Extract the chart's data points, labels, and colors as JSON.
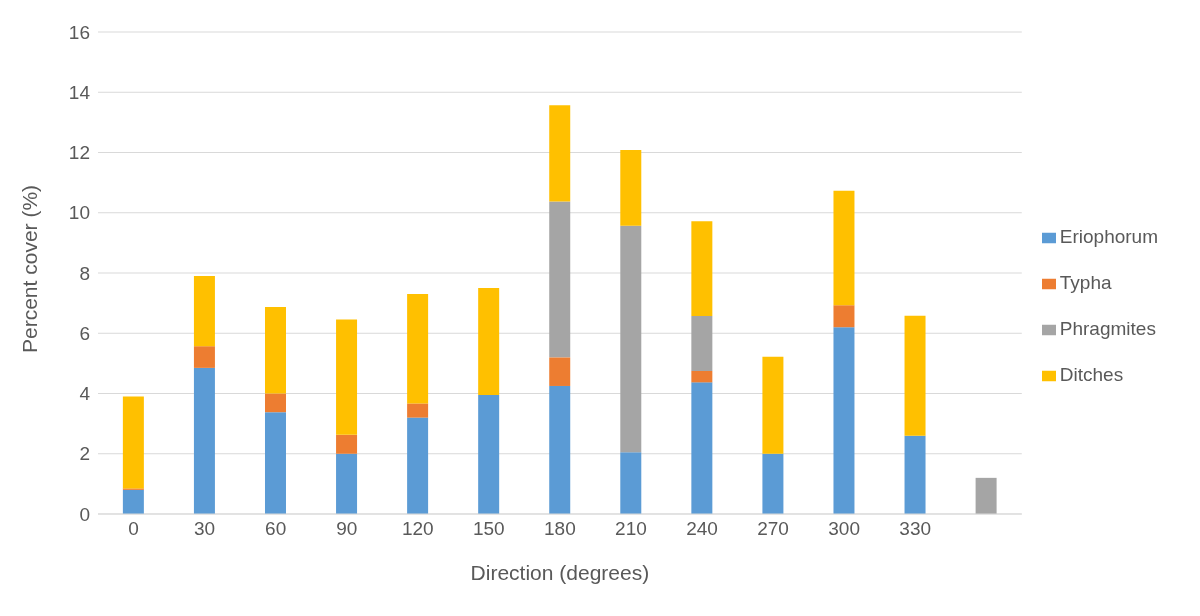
{
  "chart_data": {
    "type": "bar",
    "stacked": true,
    "xlabel": "Direction (degrees)",
    "ylabel": "Percent cover (%)",
    "categories": [
      "0",
      "30",
      "60",
      "90",
      "120",
      "150",
      "180",
      "210",
      "240",
      "270",
      "300",
      "330",
      null
    ],
    "series": [
      {
        "name": "Eriophorum",
        "color": "#5b9bd5",
        "values": [
          0.8,
          4.85,
          3.38,
          2.0,
          3.2,
          3.95,
          4.25,
          2.05,
          4.37,
          2.0,
          6.2,
          2.6,
          null
        ]
      },
      {
        "name": "Typha",
        "color": "#ed7d31",
        "values": [
          0.05,
          0.72,
          0.62,
          0.63,
          0.47,
          null,
          0.95,
          null,
          0.38,
          null,
          0.73,
          null,
          null
        ]
      },
      {
        "name": "Phragmites",
        "color": "#a5a5a5",
        "values": [
          null,
          null,
          null,
          null,
          null,
          null,
          5.17,
          7.52,
          1.82,
          null,
          null,
          null,
          1.2
        ]
      },
      {
        "name": "Ditches",
        "color": "#ffc000",
        "values": [
          3.05,
          2.33,
          2.87,
          3.83,
          3.63,
          3.55,
          3.2,
          2.51,
          3.15,
          3.22,
          3.8,
          3.98,
          null
        ]
      }
    ],
    "ylim": [
      0,
      16
    ],
    "yticks": [
      0,
      2,
      4,
      6,
      8,
      10,
      12,
      14,
      16
    ],
    "grid": "y",
    "legend": "right"
  }
}
